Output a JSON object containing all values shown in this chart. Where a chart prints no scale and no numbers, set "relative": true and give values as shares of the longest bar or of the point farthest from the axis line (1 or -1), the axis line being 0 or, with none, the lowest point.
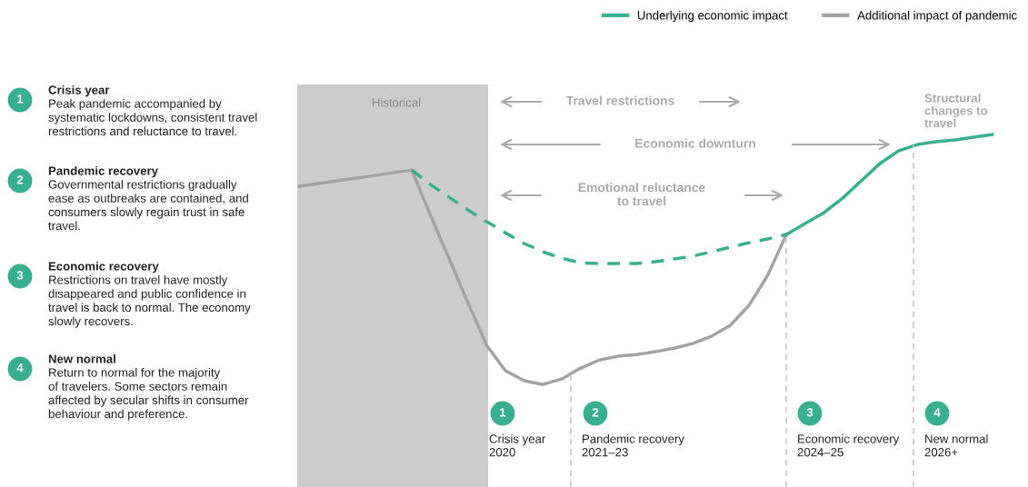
{
  "chart_data": {
    "type": "line",
    "relative": true,
    "legend": "top right",
    "marker": "none",
    "categories": [
      null,
      null,
      null,
      null,
      null,
      null,
      null,
      null,
      null,
      null,
      null,
      null,
      null,
      null,
      null,
      null,
      null,
      null,
      null,
      null,
      null,
      null,
      null,
      null,
      null,
      null,
      null,
      null,
      null,
      null,
      null,
      null,
      null,
      null,
      null,
      null,
      null,
      null
    ],
    "series": [
      {
        "name": "Additional impact of pandemic",
        "color": "#a3a3a3",
        "values": [
          0.793,
          0.804,
          0.815,
          0.825,
          0.836,
          0.847,
          0.858,
          0.676,
          0.502,
          0.327,
          0.156,
          0.055,
          0.015,
          0,
          0.022,
          0.065,
          0.098,
          0.113,
          0.12,
          0.131,
          0.145,
          0.164,
          0.193,
          0.236,
          0.316,
          0.436,
          0.6,
          null,
          null,
          null,
          null,
          null,
          null,
          null,
          null,
          null,
          null,
          null
        ]
      },
      {
        "color": "#3aaf8f",
        "line_style": "dashed",
        "values": [
          null,
          null,
          null,
          null,
          null,
          null,
          0.858,
          0.8,
          0.749,
          0.698,
          0.651,
          0.607,
          0.564,
          0.531,
          0.505,
          0.487,
          0.484,
          0.484,
          0.484,
          0.491,
          0.502,
          0.513,
          0.531,
          0.549,
          0.567,
          0.582,
          0.6,
          null,
          null,
          null,
          null,
          null,
          null,
          null,
          null,
          null,
          null,
          null
        ]
      },
      {
        "name": "Underlying economic impact",
        "color": "#3aaf8f",
        "values": [
          null,
          null,
          null,
          null,
          null,
          null,
          null,
          null,
          null,
          null,
          null,
          null,
          null,
          null,
          null,
          null,
          null,
          null,
          null,
          null,
          null,
          null,
          null,
          null,
          null,
          null,
          0.6,
          0.644,
          0.687,
          0.745,
          0.815,
          0.884,
          0.935,
          0.96,
          0.971,
          0.978,
          0.989,
          1.0
        ]
      }
    ],
    "annotations": [
      "1",
      "Crisis year",
      "Peak pandemic accompanied by\nsystematic lockdowns, consistent travel\nrestrictions and reluctance to travel.",
      "2",
      "Pandemic recovery",
      "Governmental restrictions gradually\nease as outbreaks are contained, and\nconsumers slowly regain trust in safe\ntravel.",
      "3",
      "Economic recovery",
      "Restrictions on travel have mostly\ndisappeared and public confidence in\ntravel is back to normal. The economy\nslowly recovers.",
      "4",
      "New normal",
      "Return to normal for the majority\nof travelers. Some sectors remain\naffected by secular shifts in consumer\nbehaviour and preference.",
      "Historical",
      "Travel restrictions",
      "Economic downturn",
      "Emotional reluctance\nto travel",
      "Structural\nchanges to\ntravel",
      "1",
      "Crisis year\n2020",
      "2",
      "Pandemic recovery\n2021–23",
      "3",
      "Economic recovery\n2024–25",
      "4",
      "New normal\n2026+"
    ]
  }
}
